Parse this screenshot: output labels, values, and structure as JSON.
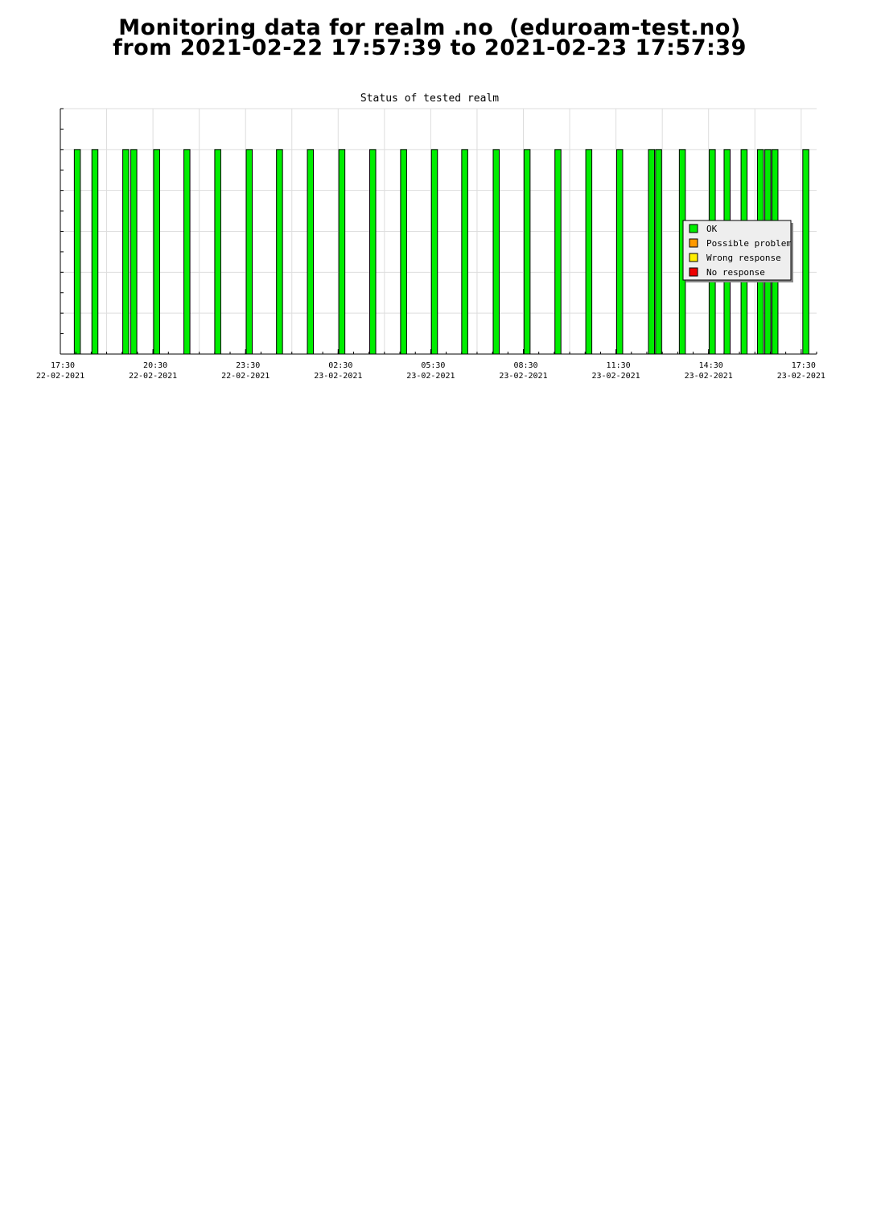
{
  "page": {
    "title_line1": "Monitoring data for realm .no  (eduroam-test.no)",
    "title_line2": "from 2021-02-22 17:57:39 to 2021-02-23 17:57:39"
  },
  "chart_data": {
    "type": "bar",
    "title": "Status of tested realm",
    "xlabel": "",
    "ylabel": "",
    "x_unit": "hours since 2021-02-22 17:30",
    "xlim": [
      0,
      24.5
    ],
    "ylim": [
      0,
      6
    ],
    "grid": true,
    "legend_position": "right",
    "colors": {
      "title": "#006400",
      "ok": "#00ee00",
      "possible_problem": "#ff9900",
      "wrong_response": "#ffee00",
      "no_response": "#ee0000",
      "grid": "#dddddd",
      "legend_bg": "#eeeeee"
    },
    "x_ticks": [
      {
        "time": "17:30",
        "date": "22-02-2021",
        "x": 0
      },
      {
        "time": "20:30",
        "date": "22-02-2021",
        "x": 3
      },
      {
        "time": "23:30",
        "date": "22-02-2021",
        "x": 6
      },
      {
        "time": "02:30",
        "date": "23-02-2021",
        "x": 9
      },
      {
        "time": "05:30",
        "date": "23-02-2021",
        "x": 12
      },
      {
        "time": "08:30",
        "date": "23-02-2021",
        "x": 15
      },
      {
        "time": "11:30",
        "date": "23-02-2021",
        "x": 18
      },
      {
        "time": "14:30",
        "date": "23-02-2021",
        "x": 21
      },
      {
        "time": "17:30",
        "date": "23-02-2021",
        "x": 24
      }
    ],
    "series": [
      {
        "name": "OK",
        "x": [
          0.55,
          1.12,
          2.12,
          2.38,
          3.12,
          4.1,
          5.1,
          6.12,
          7.1,
          8.1,
          9.12,
          10.12,
          11.12,
          12.12,
          13.1,
          14.12,
          15.12,
          16.12,
          17.12,
          18.12,
          19.15,
          19.38,
          20.15,
          21.12,
          21.6,
          22.15,
          22.68,
          22.92,
          23.15,
          24.15
        ],
        "values": [
          5,
          5,
          5,
          5,
          5,
          5,
          5,
          5,
          5,
          5,
          5,
          5,
          5,
          5,
          5,
          5,
          5,
          5,
          5,
          5,
          5,
          5,
          5,
          5,
          5,
          5,
          5,
          5,
          5,
          5
        ]
      },
      {
        "name": "Possible problem",
        "x": [],
        "values": []
      },
      {
        "name": "Wrong response",
        "x": [],
        "values": []
      },
      {
        "name": "No response",
        "x": [],
        "values": []
      }
    ]
  }
}
